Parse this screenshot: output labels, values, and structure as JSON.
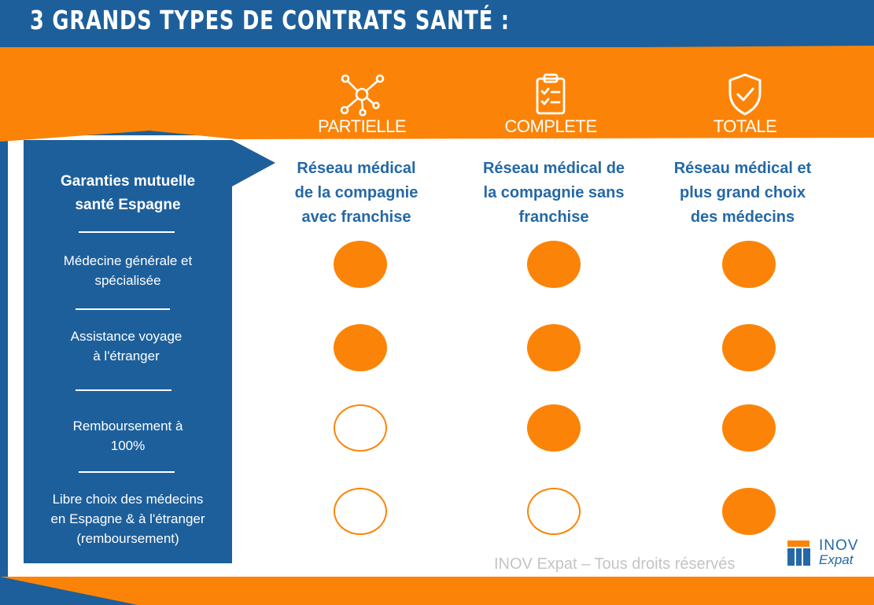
{
  "title": "3 GRANDS TYPES DE CONTRATS SANTÉ :",
  "plans": [
    {
      "name": "PARTIELLE",
      "icon": "network-icon",
      "description": [
        "Réseau médical",
        "de la compagnie",
        "avec franchise"
      ]
    },
    {
      "name": "COMPLETE",
      "icon": "clipboard-checklist-icon",
      "description": [
        "Réseau médical de",
        "la compagnie sans",
        "franchise"
      ]
    },
    {
      "name": "TOTALE",
      "icon": "shield-check-icon",
      "description": [
        "Réseau médical et",
        "plus grand choix",
        "des médecins"
      ]
    }
  ],
  "sidebar": {
    "title": [
      "Garanties mutuelle",
      "santé Espagne"
    ],
    "items": [
      {
        "lines": [
          "Médecine générale et",
          "spécialisée"
        ]
      },
      {
        "lines": [
          "Assistance voyage",
          "à l'étranger"
        ]
      },
      {
        "lines": [
          "Remboursement à",
          "100%"
        ]
      },
      {
        "lines": [
          "Libre choix des médecins",
          "en Espagne & à l'étranger",
          "(remboursement)"
        ]
      }
    ]
  },
  "coverage": [
    [
      "full",
      "full",
      "full"
    ],
    [
      "full",
      "full",
      "full"
    ],
    [
      "empty",
      "full",
      "full"
    ],
    [
      "empty",
      "empty",
      "full"
    ]
  ],
  "footer": "INOV Expat – Tous droits réservés",
  "logo": {
    "line1": "INOV",
    "line2": "Expat"
  },
  "colors": {
    "blue": "#1d5f9b",
    "orange": "#fb8408",
    "text_blue": "#2468a6",
    "white": "#ffffff"
  }
}
